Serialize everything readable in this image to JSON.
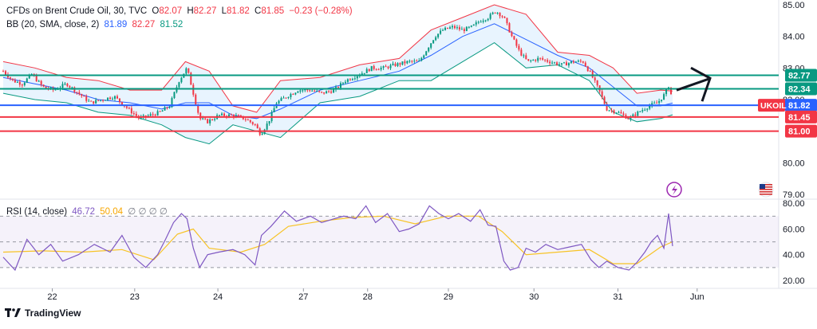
{
  "header": {
    "symbol": "CFDs on Brent Crude Oil, 30, TVC",
    "o_label": "O",
    "o": "82.07",
    "h_label": "H",
    "h": "82.27",
    "l_label": "L",
    "l": "81.82",
    "c_label": "C",
    "c": "81.85",
    "change": "−0.23 (−0.28%)",
    "bb_label": "BB (20, SMA, close, 2)",
    "bb_basis": "81.89",
    "bb_upper": "82.27",
    "bb_lower": "81.52"
  },
  "rsi_header": {
    "label": "RSI (14, close)",
    "rsi": "46.72",
    "ma": "50.04",
    "extras": "∅ ∅ ∅ ∅"
  },
  "footer": {
    "brand": "TradingView"
  },
  "colors": {
    "bull": "#089981",
    "bear": "#f23645",
    "bb": "#f23645",
    "bb_mid": "#2962ff",
    "bb_fill": "#2196f3",
    "green_line": "#089981",
    "red_line": "#f23645",
    "blue_line": "#2962ff",
    "rsi_line": "#7e57c2",
    "rsi_ma": "#f7c325",
    "rsi_band": "#7e57c2",
    "arrow": "#131722"
  },
  "icons": [
    "lightning-icon",
    "us-flag-icon",
    "tradingview-logo-icon"
  ],
  "chart_data": [
    {
      "type": "candlestick",
      "title": "CFDs on Brent Crude Oil, 30, TVC",
      "x_ticks": [
        "22",
        "23",
        "24",
        "27",
        "28",
        "29",
        "30",
        "31",
        "Jun"
      ],
      "y_ticks": [
        "85.00",
        "84.00",
        "83.00",
        "82.00",
        "80.00",
        "79.00"
      ],
      "ylim": [
        78.9,
        85.05
      ],
      "close_path": [
        [
          0,
          82.9
        ],
        [
          12,
          82.6
        ],
        [
          24,
          82.5
        ],
        [
          36,
          82.8
        ],
        [
          50,
          82.4
        ],
        [
          64,
          82.3
        ],
        [
          80,
          82.5
        ],
        [
          95,
          82.2
        ],
        [
          110,
          81.9
        ],
        [
          125,
          82.0
        ],
        [
          140,
          82.1
        ],
        [
          158,
          81.7
        ],
        [
          172,
          81.4
        ],
        [
          185,
          81.5
        ],
        [
          198,
          81.6
        ],
        [
          210,
          81.8
        ],
        [
          222,
          82.6
        ],
        [
          232,
          83.0
        ],
        [
          240,
          82.2
        ],
        [
          248,
          81.4
        ],
        [
          258,
          81.3
        ],
        [
          272,
          81.5
        ],
        [
          290,
          81.5
        ],
        [
          305,
          81.4
        ],
        [
          318,
          81.2
        ],
        [
          325,
          80.9
        ],
        [
          335,
          81.3
        ],
        [
          345,
          81.9
        ],
        [
          358,
          82.1
        ],
        [
          372,
          82.3
        ],
        [
          388,
          82.3
        ],
        [
          402,
          82.2
        ],
        [
          418,
          82.3
        ],
        [
          432,
          82.6
        ],
        [
          450,
          82.8
        ],
        [
          465,
          83.0
        ],
        [
          480,
          83.0
        ],
        [
          495,
          83.1
        ],
        [
          512,
          83.2
        ],
        [
          525,
          83.2
        ],
        [
          535,
          83.6
        ],
        [
          545,
          84.0
        ],
        [
          555,
          84.2
        ],
        [
          568,
          84.3
        ],
        [
          580,
          84.2
        ],
        [
          592,
          84.3
        ],
        [
          602,
          84.5
        ],
        [
          612,
          84.6
        ],
        [
          622,
          84.8
        ],
        [
          632,
          84.6
        ],
        [
          642,
          84.0
        ],
        [
          652,
          83.5
        ],
        [
          662,
          83.2
        ],
        [
          676,
          83.3
        ],
        [
          690,
          83.2
        ],
        [
          705,
          83.1
        ],
        [
          720,
          83.2
        ],
        [
          732,
          83.2
        ],
        [
          742,
          82.8
        ],
        [
          752,
          82.3
        ],
        [
          762,
          81.7
        ],
        [
          776,
          81.6
        ],
        [
          790,
          81.4
        ],
        [
          802,
          81.6
        ],
        [
          815,
          81.8
        ],
        [
          826,
          81.9
        ],
        [
          836,
          82.2
        ],
        [
          841,
          82.5
        ],
        [
          845,
          81.85
        ]
      ],
      "series": [
        {
          "name": "BB upper",
          "values_path": [
            [
              0,
              83.2
            ],
            [
              40,
              83.0
            ],
            [
              80,
              82.7
            ],
            [
              120,
              82.6
            ],
            [
              160,
              82.3
            ],
            [
              200,
              82.3
            ],
            [
              230,
              83.2
            ],
            [
              260,
              82.9
            ],
            [
              290,
              81.8
            ],
            [
              320,
              81.6
            ],
            [
              350,
              82.6
            ],
            [
              400,
              82.7
            ],
            [
              450,
              83.1
            ],
            [
              500,
              83.3
            ],
            [
              540,
              84.2
            ],
            [
              580,
              84.6
            ],
            [
              620,
              85.0
            ],
            [
              660,
              84.7
            ],
            [
              700,
              83.5
            ],
            [
              740,
              83.4
            ],
            [
              770,
              83.0
            ],
            [
              800,
              82.2
            ],
            [
              830,
              82.3
            ],
            [
              845,
              82.27
            ]
          ]
        },
        {
          "name": "BB basis",
          "values_path": [
            [
              0,
              82.7
            ],
            [
              40,
              82.5
            ],
            [
              80,
              82.3
            ],
            [
              120,
              82.0
            ],
            [
              160,
              81.9
            ],
            [
              200,
              81.7
            ],
            [
              230,
              81.9
            ],
            [
              260,
              81.9
            ],
            [
              290,
              81.5
            ],
            [
              320,
              81.4
            ],
            [
              350,
              81.7
            ],
            [
              400,
              82.3
            ],
            [
              450,
              82.6
            ],
            [
              500,
              82.9
            ],
            [
              540,
              83.4
            ],
            [
              580,
              84.0
            ],
            [
              620,
              84.4
            ],
            [
              660,
              83.9
            ],
            [
              700,
              83.4
            ],
            [
              740,
              83.0
            ],
            [
              770,
              82.4
            ],
            [
              800,
              81.8
            ],
            [
              830,
              81.8
            ],
            [
              845,
              81.89
            ]
          ]
        },
        {
          "name": "BB lower",
          "values_path": [
            [
              0,
              82.2
            ],
            [
              40,
              82.0
            ],
            [
              80,
              81.9
            ],
            [
              120,
              81.6
            ],
            [
              160,
              81.5
            ],
            [
              200,
              81.2
            ],
            [
              230,
              80.8
            ],
            [
              260,
              80.6
            ],
            [
              290,
              81.2
            ],
            [
              320,
              81.0
            ],
            [
              350,
              80.8
            ],
            [
              400,
              81.9
            ],
            [
              450,
              82.1
            ],
            [
              500,
              82.6
            ],
            [
              540,
              82.6
            ],
            [
              580,
              83.2
            ],
            [
              620,
              83.8
            ],
            [
              660,
              83.0
            ],
            [
              700,
              83.1
            ],
            [
              740,
              82.6
            ],
            [
              770,
              81.6
            ],
            [
              800,
              81.3
            ],
            [
              830,
              81.4
            ],
            [
              845,
              81.52
            ]
          ]
        }
      ],
      "levels": [
        {
          "label": "82.77",
          "value": 82.77,
          "kind": "green"
        },
        {
          "label": "82.34",
          "value": 82.34,
          "kind": "green"
        },
        {
          "label": "81.82",
          "value": 81.82,
          "kind": "blue"
        },
        {
          "label": "81.45",
          "value": 81.45,
          "kind": "red"
        },
        {
          "label": "81.00",
          "value": 81.0,
          "kind": "red"
        }
      ],
      "symbol_tag": "UKOIL"
    },
    {
      "type": "line",
      "title": "RSI (14, close)",
      "y_ticks": [
        "80.00",
        "60.00",
        "40.00",
        "20.00"
      ],
      "ylim": [
        15,
        82
      ],
      "band": [
        30,
        70
      ],
      "series": [
        {
          "name": "RSI",
          "values_path": [
            [
              0,
              38
            ],
            [
              15,
              28
            ],
            [
              30,
              52
            ],
            [
              45,
              40
            ],
            [
              60,
              48
            ],
            [
              75,
              35
            ],
            [
              95,
              40
            ],
            [
              115,
              48
            ],
            [
              135,
              42
            ],
            [
              150,
              55
            ],
            [
              165,
              38
            ],
            [
              180,
              30
            ],
            [
              195,
              40
            ],
            [
              205,
              52
            ],
            [
              215,
              65
            ],
            [
              225,
              72
            ],
            [
              232,
              68
            ],
            [
              240,
              45
            ],
            [
              248,
              30
            ],
            [
              258,
              40
            ],
            [
              272,
              42
            ],
            [
              290,
              44
            ],
            [
              305,
              40
            ],
            [
              318,
              32
            ],
            [
              326,
              55
            ],
            [
              338,
              62
            ],
            [
              355,
              74
            ],
            [
              370,
              66
            ],
            [
              388,
              70
            ],
            [
              402,
              65
            ],
            [
              418,
              68
            ],
            [
              430,
              70
            ],
            [
              445,
              68
            ],
            [
              458,
              78
            ],
            [
              470,
              65
            ],
            [
              485,
              72
            ],
            [
              500,
              58
            ],
            [
              512,
              60
            ],
            [
              525,
              64
            ],
            [
              538,
              78
            ],
            [
              550,
              72
            ],
            [
              562,
              68
            ],
            [
              575,
              72
            ],
            [
              590,
              66
            ],
            [
              602,
              75
            ],
            [
              612,
              63
            ],
            [
              622,
              62
            ],
            [
              632,
              35
            ],
            [
              640,
              28
            ],
            [
              650,
              30
            ],
            [
              660,
              45
            ],
            [
              672,
              42
            ],
            [
              685,
              48
            ],
            [
              700,
              44
            ],
            [
              715,
              46
            ],
            [
              730,
              48
            ],
            [
              742,
              36
            ],
            [
              752,
              30
            ],
            [
              762,
              35
            ],
            [
              776,
              30
            ],
            [
              790,
              28
            ],
            [
              800,
              34
            ],
            [
              810,
              42
            ],
            [
              818,
              50
            ],
            [
              826,
              55
            ],
            [
              834,
              45
            ],
            [
              840,
              72
            ],
            [
              845,
              46.72
            ]
          ]
        },
        {
          "name": "RSI-based MA",
          "values_path": [
            [
              0,
              42
            ],
            [
              50,
              43
            ],
            [
              100,
              42
            ],
            [
              150,
              44
            ],
            [
              190,
              36
            ],
            [
              220,
              56
            ],
            [
              240,
              60
            ],
            [
              260,
              45
            ],
            [
              300,
              42
            ],
            [
              330,
              48
            ],
            [
              360,
              62
            ],
            [
              400,
              66
            ],
            [
              440,
              69
            ],
            [
              480,
              70
            ],
            [
              520,
              64
            ],
            [
              560,
              70
            ],
            [
              600,
              70
            ],
            [
              630,
              58
            ],
            [
              660,
              40
            ],
            [
              700,
              42
            ],
            [
              740,
              44
            ],
            [
              770,
              33
            ],
            [
              800,
              33
            ],
            [
              830,
              46
            ],
            [
              845,
              50.04
            ]
          ]
        }
      ]
    }
  ]
}
